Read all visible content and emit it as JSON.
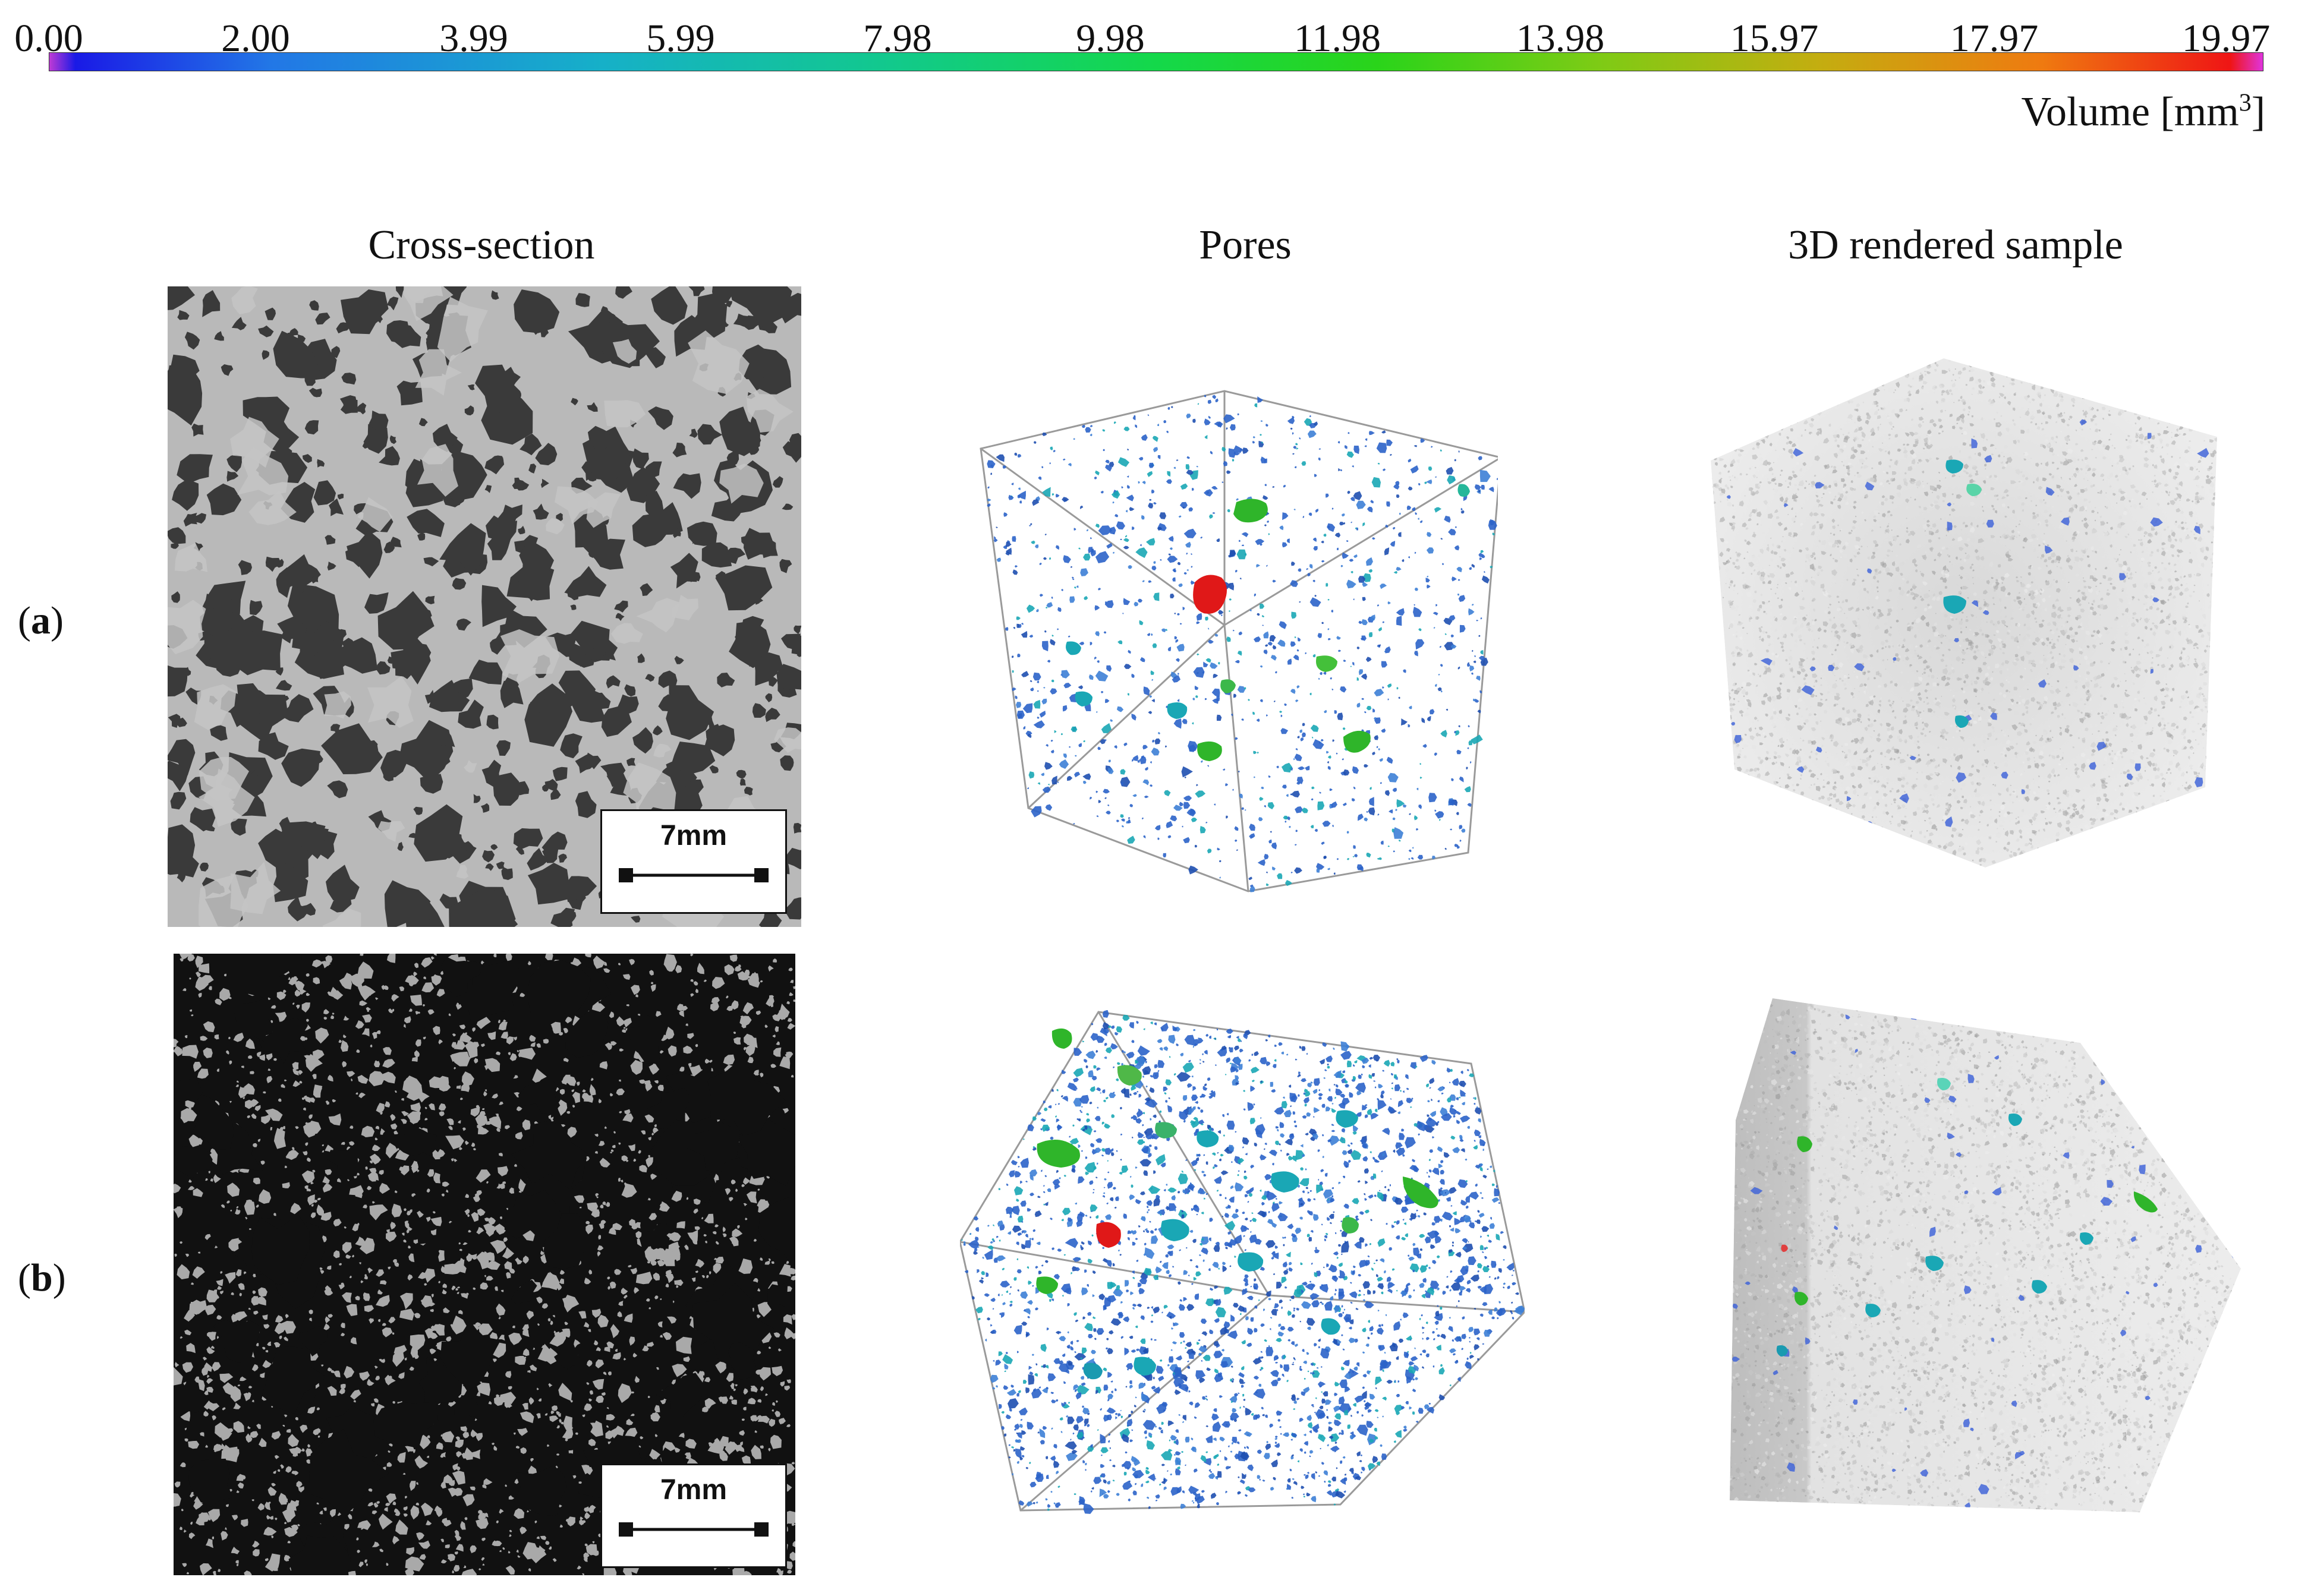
{
  "colorbar": {
    "ticks": [
      "0.00",
      "2.00",
      "3.99",
      "5.99",
      "7.98",
      "9.98",
      "11.98",
      "13.98",
      "15.97",
      "17.97",
      "19.97"
    ],
    "label_text": "Volume [mm",
    "label_sup": "3",
    "label_close": "]",
    "colors": [
      "#c23bd4",
      "#1a1ae6",
      "#2277e6",
      "#16b0c8",
      "#12c98c",
      "#14d84a",
      "#2ad41a",
      "#7ecb15",
      "#c4ad10",
      "#ef7a10",
      "#ef1515",
      "#e034e0"
    ]
  },
  "columns": {
    "cross_section": "Cross-section",
    "pores": "Pores",
    "rendered": "3D rendered sample"
  },
  "rows": [
    {
      "paren_open": "(",
      "letter": "a",
      "paren_close": ")",
      "scale_label": "7mm"
    },
    {
      "paren_open": "(",
      "letter": "b",
      "paren_close": ")",
      "scale_label": "7mm"
    }
  ],
  "colors": {
    "matrix_light": "#b9b9b9",
    "pore_dark_a": "#3a3a3a",
    "pore_dark_b": "#111111",
    "pore_blue": "#2b63c9",
    "pore_cyan": "#1aa7b5",
    "pore_green": "#2fb52a",
    "pore_red": "#e01818"
  }
}
